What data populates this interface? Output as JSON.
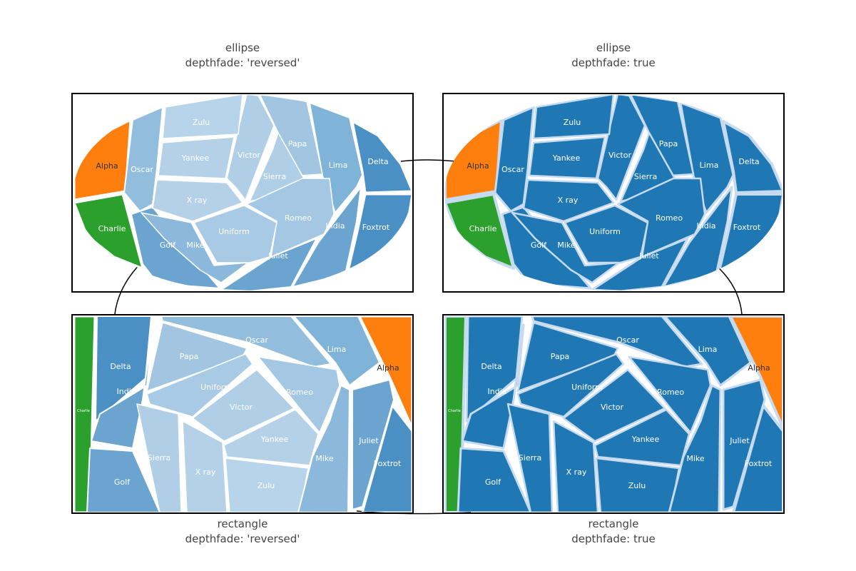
{
  "chart_data": [
    {
      "type": "voronoi-treemap",
      "shape": "ellipse",
      "depthfade": "reversed",
      "title_lines": [
        "ellipse",
        "depthfade: 'reversed'"
      ],
      "cells": [
        {
          "label": "Alpha",
          "color": "#ff7f0e"
        },
        {
          "label": "Charlie",
          "color": "#2ca02c"
        },
        {
          "label": "Delta",
          "color": "#4a90c4"
        },
        {
          "label": "Foxtrot",
          "color": "#4a90c4"
        },
        {
          "label": "India",
          "color": "#6aa4cf"
        },
        {
          "label": "Juliet",
          "color": "#6aa4cf"
        },
        {
          "label": "Lima",
          "color": "#80b3d8"
        },
        {
          "label": "Oscar",
          "color": "#92bddd"
        },
        {
          "label": "Golf",
          "color": "#6aa4cf"
        },
        {
          "label": "Mike",
          "color": "#8bb8db"
        },
        {
          "label": "Papa",
          "color": "#a2c6e2"
        },
        {
          "label": "Victor",
          "color": "#b0cfe7"
        },
        {
          "label": "Zulu",
          "color": "#b8d4ea"
        },
        {
          "label": "Yankee",
          "color": "#b4d1e8"
        },
        {
          "label": "X ray",
          "color": "#b4d1e8"
        },
        {
          "label": "Sierra",
          "color": "#b0cfe7"
        },
        {
          "label": "Romeo",
          "color": "#a4c7e3"
        },
        {
          "label": "Uniform",
          "color": "#a8cae4"
        }
      ]
    },
    {
      "type": "voronoi-treemap",
      "shape": "ellipse",
      "depthfade": "true",
      "title_lines": [
        "ellipse",
        "depthfade: true"
      ],
      "cells": [
        {
          "label": "Alpha",
          "color": "#ff7f0e"
        },
        {
          "label": "Charlie",
          "color": "#2ca02c"
        },
        {
          "label": "Delta",
          "color": "#1f77b4"
        },
        {
          "label": "Foxtrot",
          "color": "#1f77b4"
        },
        {
          "label": "India",
          "color": "#1f77b4"
        },
        {
          "label": "Juliet",
          "color": "#1f77b4"
        },
        {
          "label": "Lima",
          "color": "#1f77b4"
        },
        {
          "label": "Oscar",
          "color": "#1f77b4"
        },
        {
          "label": "Golf",
          "color": "#1f77b4"
        },
        {
          "label": "Mike",
          "color": "#1f77b4"
        },
        {
          "label": "Papa",
          "color": "#1f77b4"
        },
        {
          "label": "Victor",
          "color": "#1f77b4"
        },
        {
          "label": "Zulu",
          "color": "#1f77b4"
        },
        {
          "label": "Yankee",
          "color": "#1f77b4"
        },
        {
          "label": "X ray",
          "color": "#1f77b4"
        },
        {
          "label": "Sierra",
          "color": "#1f77b4"
        },
        {
          "label": "Romeo",
          "color": "#1f77b4"
        },
        {
          "label": "Uniform",
          "color": "#1f77b4"
        }
      ]
    },
    {
      "type": "voronoi-treemap",
      "shape": "rectangle",
      "depthfade": "reversed",
      "title_lines": [
        "rectangle",
        "depthfade: 'reversed'"
      ],
      "cells": [
        {
          "label": "Charlie",
          "color": "#2ca02c"
        },
        {
          "label": "Delta",
          "color": "#4a90c4"
        },
        {
          "label": "India",
          "color": "#6aa4cf"
        },
        {
          "label": "Golf",
          "color": "#6aa4cf"
        },
        {
          "label": "Oscar",
          "color": "#92bddd"
        },
        {
          "label": "Papa",
          "color": "#a2c6e2"
        },
        {
          "label": "Uniform",
          "color": "#a8cae4"
        },
        {
          "label": "Victor",
          "color": "#b0cfe7"
        },
        {
          "label": "Sierra",
          "color": "#b0cfe7"
        },
        {
          "label": "X ray",
          "color": "#b4d1e8"
        },
        {
          "label": "Zulu",
          "color": "#b8d4ea"
        },
        {
          "label": "Yankee",
          "color": "#b4d1e8"
        },
        {
          "label": "Romeo",
          "color": "#a4c7e3"
        },
        {
          "label": "Lima",
          "color": "#80b3d8"
        },
        {
          "label": "Mike",
          "color": "#8bb8db"
        },
        {
          "label": "Juliet",
          "color": "#6aa4cf"
        },
        {
          "label": "Alpha",
          "color": "#ff7f0e"
        },
        {
          "label": "Foxtrot",
          "color": "#4a90c4"
        }
      ]
    },
    {
      "type": "voronoi-treemap",
      "shape": "rectangle",
      "depthfade": "true",
      "title_lines": [
        "rectangle",
        "depthfade: true"
      ],
      "cells": [
        {
          "label": "Charlie",
          "color": "#2ca02c"
        },
        {
          "label": "Delta",
          "color": "#1f77b4"
        },
        {
          "label": "India",
          "color": "#1f77b4"
        },
        {
          "label": "Golf",
          "color": "#1f77b4"
        },
        {
          "label": "Oscar",
          "color": "#1f77b4"
        },
        {
          "label": "Papa",
          "color": "#1f77b4"
        },
        {
          "label": "Uniform",
          "color": "#1f77b4"
        },
        {
          "label": "Victor",
          "color": "#1f77b4"
        },
        {
          "label": "Sierra",
          "color": "#1f77b4"
        },
        {
          "label": "X ray",
          "color": "#1f77b4"
        },
        {
          "label": "Zulu",
          "color": "#1f77b4"
        },
        {
          "label": "Yankee",
          "color": "#1f77b4"
        },
        {
          "label": "Romeo",
          "color": "#1f77b4"
        },
        {
          "label": "Lima",
          "color": "#1f77b4"
        },
        {
          "label": "Mike",
          "color": "#1f77b4"
        },
        {
          "label": "Juliet",
          "color": "#1f77b4"
        },
        {
          "label": "Alpha",
          "color": "#ff7f0e"
        },
        {
          "label": "Foxtrot",
          "color": "#1f77b4"
        }
      ]
    }
  ]
}
